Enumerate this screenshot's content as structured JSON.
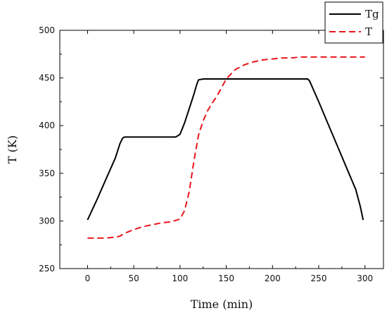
{
  "chart_data": {
    "type": "line",
    "title": "",
    "xlabel": "Time (min)",
    "ylabel": "T (K)",
    "xlim": [
      -30,
      320
    ],
    "ylim": [
      250,
      500
    ],
    "xticks": [
      0,
      50,
      100,
      150,
      200,
      250,
      300
    ],
    "yticks": [
      250,
      300,
      350,
      400,
      450,
      500
    ],
    "grid": false,
    "legend_position": "top-right",
    "series": [
      {
        "name": "Tg",
        "color": "#000000",
        "style": "solid",
        "x": [
          0,
          10,
          20,
          30,
          35,
          38,
          40,
          50,
          60,
          70,
          80,
          90,
          95,
          97,
          100,
          105,
          110,
          115,
          118,
          120,
          125,
          130,
          140,
          150,
          160,
          170,
          180,
          190,
          200,
          210,
          220,
          230,
          235,
          238,
          240,
          250,
          260,
          270,
          280,
          290,
          295,
          298
        ],
        "y": [
          301,
          322,
          344,
          366,
          381,
          387,
          388,
          388,
          388,
          388,
          388,
          388,
          388,
          389,
          391,
          403,
          418,
          433,
          443,
          448,
          449,
          449,
          449,
          449,
          449,
          449,
          449,
          449,
          449,
          449,
          449,
          449,
          449,
          449,
          447,
          425,
          402,
          379,
          356,
          333,
          315,
          301
        ]
      },
      {
        "name": "T",
        "color": "#e8161b",
        "style": "dashed",
        "x": [
          0,
          10,
          20,
          30,
          35,
          40,
          50,
          60,
          70,
          80,
          90,
          100,
          105,
          110,
          115,
          120,
          125,
          130,
          135,
          140,
          145,
          150,
          155,
          160,
          170,
          180,
          190,
          200,
          210,
          220,
          230,
          240,
          250,
          260,
          270,
          280,
          290,
          300
        ],
        "y": [
          282,
          282,
          282,
          283,
          284,
          287,
          291,
          294,
          296,
          298,
          299,
          302,
          311,
          331,
          363,
          390,
          405,
          416,
          424,
          431,
          440,
          449,
          454,
          459,
          464,
          467,
          469,
          470,
          471,
          471,
          472,
          472,
          472,
          472,
          472,
          472,
          472,
          472
        ]
      }
    ]
  }
}
